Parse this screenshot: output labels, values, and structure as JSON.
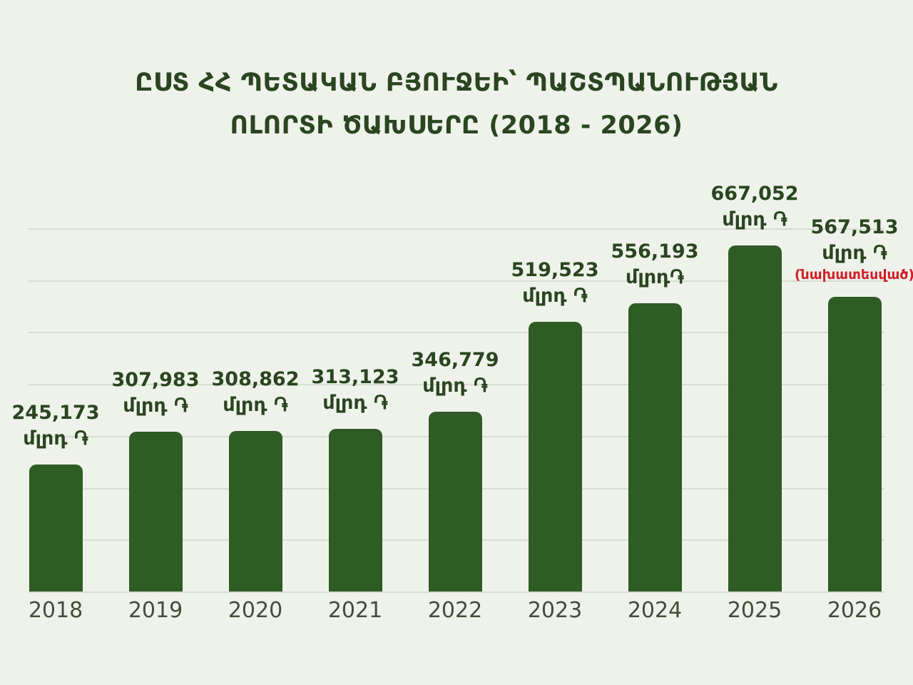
{
  "title": {
    "line1": "ԸՍՏ ՀՀ ՊԵՏԱԿԱՆ ԲՅՈՒՋԵԻ՝ ՊԱՇՏՊԱՆՈՒԹՅԱՆ",
    "line2": "ՈԼՈՐՏԻ ԾԱԽՍԵՐԸ (2018 - 2026)"
  },
  "colors": {
    "background": "#eff2eb",
    "bar": "#2f5b25",
    "text_green": "#2a4520",
    "year_text": "#424d3a",
    "note_red": "#cf2127",
    "gridline": "#d9dcd3"
  },
  "chart_data": {
    "type": "bar",
    "title": "ԸՍՏ ՀՀ ՊԵՏԱԿԱՆ ԲՅՈՒՋԵԻ՝ ՊԱՇՏՊԱՆՈՒԹՅԱՆ ՈԼՈՐՏԻ ԾԱԽՍԵՐԸ (2018 - 2026)",
    "xlabel": "",
    "ylabel": "",
    "categories": [
      "2018",
      "2019",
      "2020",
      "2021",
      "2022",
      "2023",
      "2024",
      "2025",
      "2026"
    ],
    "values": [
      245173,
      307983,
      308862,
      313123,
      346779,
      519523,
      556193,
      667052,
      567513
    ],
    "unit": "մլրդ ֏",
    "ylim": [
      0,
      700000
    ],
    "gridline_step": 100000,
    "grid": true,
    "legend": false,
    "points": [
      {
        "year": "2018",
        "value": 245173,
        "value_label": "245,173",
        "unit_label": "մլրդ ֏"
      },
      {
        "year": "2019",
        "value": 307983,
        "value_label": "307,983",
        "unit_label": "մլրդ ֏"
      },
      {
        "year": "2020",
        "value": 308862,
        "value_label": "308,862",
        "unit_label": "մլրդ ֏"
      },
      {
        "year": "2021",
        "value": 313123,
        "value_label": "313,123",
        "unit_label": "մլրդ ֏"
      },
      {
        "year": "2022",
        "value": 346779,
        "value_label": "346,779",
        "unit_label": "մլրդ ֏"
      },
      {
        "year": "2023",
        "value": 519523,
        "value_label": "519,523",
        "unit_label": "մլրդ ֏"
      },
      {
        "year": "2024",
        "value": 556193,
        "value_label": "556,193",
        "unit_label": "մլրդ֏"
      },
      {
        "year": "2025",
        "value": 667052,
        "value_label": "667,052",
        "unit_label": "մլրդ ֏"
      },
      {
        "year": "2026",
        "value": 567513,
        "value_label": "567,513",
        "unit_label": "մլրդ ֏",
        "note": "(նախատեսված)"
      }
    ]
  }
}
